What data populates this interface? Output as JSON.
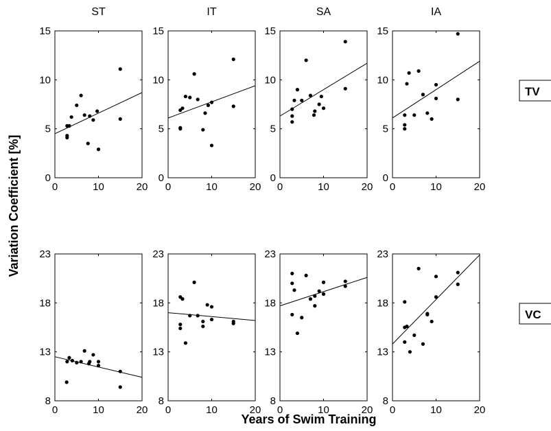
{
  "chart_data": {
    "type": "scatter",
    "xlabel": "Years of Swim Training",
    "ylabel": "Variation Coefficient [%]",
    "columns": [
      "ST",
      "IT",
      "SA",
      "IA"
    ],
    "rows": [
      {
        "label": "TV",
        "ylim": [
          0,
          15
        ],
        "yticks": [
          "0",
          "5",
          "10",
          "15"
        ],
        "panels": [
          {
            "title": "ST",
            "points": [
              [
                2.8,
                4.1
              ],
              [
                2.8,
                4.3
              ],
              [
                2.8,
                5.3
              ],
              [
                3.3,
                5.3
              ],
              [
                3.8,
                6.2
              ],
              [
                5,
                7.4
              ],
              [
                6,
                8.4
              ],
              [
                6.8,
                6.4
              ],
              [
                7.6,
                3.5
              ],
              [
                8,
                6.3
              ],
              [
                8.8,
                5.9
              ],
              [
                9.7,
                6.8
              ],
              [
                10,
                2.9
              ],
              [
                15,
                11.1
              ],
              [
                15,
                6.0
              ]
            ],
            "fit": [
              [
                0,
                4.5
              ],
              [
                20,
                8.7
              ]
            ]
          },
          {
            "title": "IT",
            "points": [
              [
                2.8,
                5.0
              ],
              [
                2.8,
                5.1
              ],
              [
                2.8,
                6.9
              ],
              [
                3.3,
                7.1
              ],
              [
                4,
                8.3
              ],
              [
                5,
                8.2
              ],
              [
                6,
                10.6
              ],
              [
                6.8,
                8.0
              ],
              [
                8,
                4.9
              ],
              [
                8.5,
                6.6
              ],
              [
                9.2,
                7.4
              ],
              [
                10,
                3.3
              ],
              [
                10,
                7.7
              ],
              [
                15,
                12.1
              ],
              [
                15,
                7.3
              ]
            ],
            "fit": [
              [
                0,
                6.1
              ],
              [
                20,
                9.4
              ]
            ]
          },
          {
            "title": "SA",
            "points": [
              [
                2.8,
                5.7
              ],
              [
                2.8,
                6.3
              ],
              [
                2.8,
                7.0
              ],
              [
                3.3,
                7.9
              ],
              [
                4,
                9.0
              ],
              [
                5,
                7.9
              ],
              [
                6,
                12.0
              ],
              [
                7,
                8.4
              ],
              [
                7.8,
                6.4
              ],
              [
                8,
                6.8
              ],
              [
                9,
                7.5
              ],
              [
                9.5,
                8.3
              ],
              [
                10,
                7.1
              ],
              [
                15,
                13.9
              ],
              [
                15,
                9.1
              ]
            ],
            "fit": [
              [
                0,
                6.3
              ],
              [
                20,
                11.7
              ]
            ]
          },
          {
            "title": "IA",
            "points": [
              [
                2.8,
                5.0
              ],
              [
                2.8,
                5.4
              ],
              [
                2.8,
                6.4
              ],
              [
                3.3,
                9.6
              ],
              [
                3.8,
                10.7
              ],
              [
                5,
                6.4
              ],
              [
                6,
                10.9
              ],
              [
                7,
                8.5
              ],
              [
                8,
                6.6
              ],
              [
                9,
                6.0
              ],
              [
                10,
                8.1
              ],
              [
                10,
                9.5
              ],
              [
                15,
                14.7
              ],
              [
                15,
                8.0
              ]
            ],
            "fit": [
              [
                0,
                6.1
              ],
              [
                20,
                11.9
              ]
            ]
          }
        ]
      },
      {
        "label": "VC",
        "ylim": [
          8,
          23
        ],
        "yticks": [
          "8",
          "13",
          "18",
          "23"
        ],
        "panels": [
          {
            "title": "ST",
            "points": [
              [
                2.7,
                9.9
              ],
              [
                2.8,
                12.0
              ],
              [
                3.3,
                12.4
              ],
              [
                4,
                12.1
              ],
              [
                5,
                11.9
              ],
              [
                6,
                12.0
              ],
              [
                6.8,
                13.1
              ],
              [
                7.8,
                11.8
              ],
              [
                8,
                12.0
              ],
              [
                8.8,
                12.7
              ],
              [
                10,
                12.0
              ],
              [
                10,
                11.6
              ],
              [
                15,
                11.0
              ],
              [
                15,
                9.4
              ]
            ],
            "fit": [
              [
                0,
                12.5
              ],
              [
                20,
                10.4
              ]
            ]
          },
          {
            "title": "IT",
            "points": [
              [
                2.8,
                15.4
              ],
              [
                2.8,
                15.8
              ],
              [
                2.8,
                18.6
              ],
              [
                3.3,
                18.4
              ],
              [
                4,
                13.9
              ],
              [
                5,
                16.7
              ],
              [
                6,
                20.1
              ],
              [
                6.8,
                16.7
              ],
              [
                8,
                15.6
              ],
              [
                8,
                16.1
              ],
              [
                9,
                17.8
              ],
              [
                10,
                16.3
              ],
              [
                10,
                17.6
              ],
              [
                15,
                16.1
              ],
              [
                15,
                15.9
              ]
            ],
            "fit": [
              [
                0,
                17.0
              ],
              [
                20,
                16.2
              ]
            ]
          },
          {
            "title": "SA",
            "points": [
              [
                2.8,
                16.8
              ],
              [
                2.8,
                20.0
              ],
              [
                2.8,
                21.0
              ],
              [
                3.3,
                19.3
              ],
              [
                4,
                14.9
              ],
              [
                5,
                16.5
              ],
              [
                6,
                20.8
              ],
              [
                7,
                18.4
              ],
              [
                8,
                17.7
              ],
              [
                8,
                18.7
              ],
              [
                9,
                19.2
              ],
              [
                10,
                18.9
              ],
              [
                10,
                20.1
              ],
              [
                15,
                19.7
              ],
              [
                15,
                20.2
              ]
            ],
            "fit": [
              [
                0,
                17.7
              ],
              [
                20,
                20.6
              ]
            ]
          },
          {
            "title": "IA",
            "points": [
              [
                2.8,
                14.0
              ],
              [
                2.8,
                15.5
              ],
              [
                2.8,
                18.1
              ],
              [
                3.3,
                15.6
              ],
              [
                4,
                13.0
              ],
              [
                5,
                14.7
              ],
              [
                6,
                21.5
              ],
              [
                7,
                13.8
              ],
              [
                8,
                16.8
              ],
              [
                8,
                16.9
              ],
              [
                9,
                16.1
              ],
              [
                10,
                18.6
              ],
              [
                10,
                20.7
              ],
              [
                15,
                19.9
              ],
              [
                15,
                21.1
              ]
            ],
            "fit": [
              [
                0,
                13.8
              ],
              [
                20,
                22.9
              ]
            ]
          }
        ]
      }
    ],
    "xlim": [
      0,
      20
    ],
    "xticks": [
      "0",
      "10",
      "20"
    ]
  }
}
